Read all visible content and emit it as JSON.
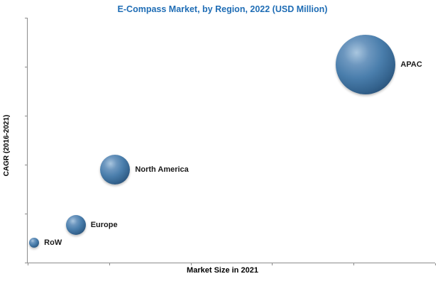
{
  "chart_data": {
    "type": "scatter",
    "subtype": "bubble",
    "title": "E-Compass Market, by Region, 2022 (USD Million)",
    "xlabel": "Market Size in 2021",
    "ylabel": "CAGR (2016-2021)",
    "grid": false,
    "legend": "none",
    "axis_note": "axes have tick marks but no numeric labels; x and y are relative positions on a 0-100 scale estimated from the plot, size is bubble radius in px proportional to market value",
    "points": [
      {
        "label": "RoW",
        "x": 1.6,
        "y": 8,
        "size": 7
      },
      {
        "label": "Europe",
        "x": 11.8,
        "y": 15.5,
        "size": 14
      },
      {
        "label": "North America",
        "x": 21.5,
        "y": 38,
        "size": 21
      },
      {
        "label": "APAC",
        "x": 83,
        "y": 81,
        "size": 42
      }
    ]
  },
  "colors": {
    "title": "#1F6DB5",
    "bubble": "#4A7EAC",
    "axis": "#8C8C8C",
    "label": "#1A1A1A"
  }
}
